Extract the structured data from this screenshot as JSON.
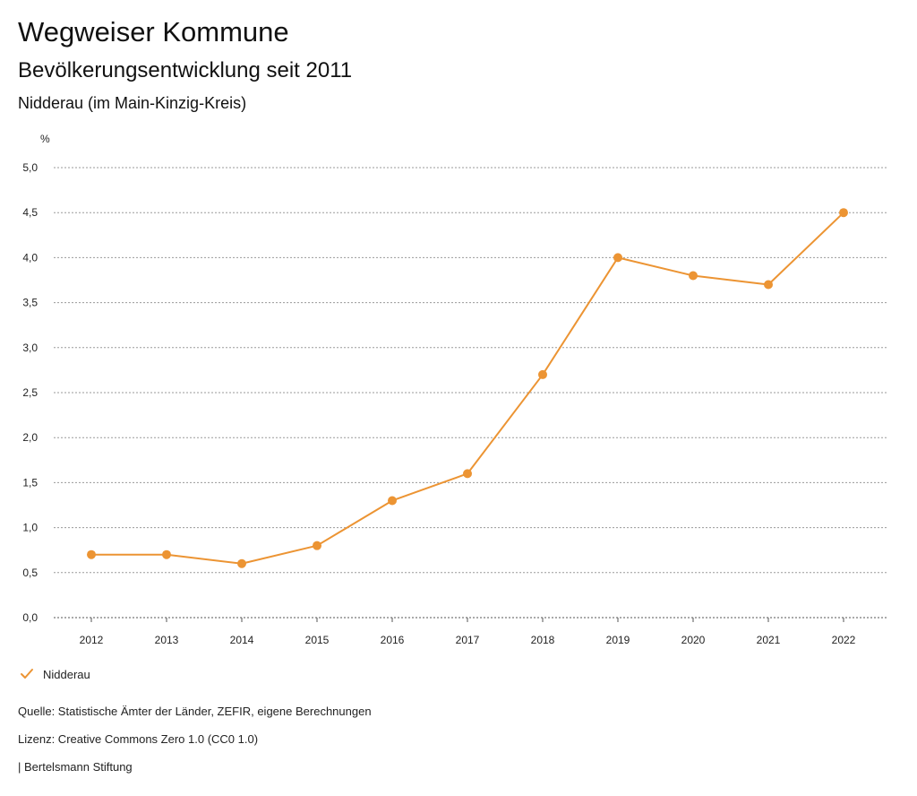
{
  "header": {
    "title": "Wegweiser Kommune",
    "subtitle": "Bevölkerungsentwicklung seit 2011",
    "region": "Nidderau (im Main-Kinzig-Kreis)"
  },
  "chart_data": {
    "type": "line",
    "title": "Bevölkerungsentwicklung seit 2011",
    "xlabel": "",
    "ylabel": "%",
    "x": [
      "2012",
      "2013",
      "2014",
      "2015",
      "2016",
      "2017",
      "2018",
      "2019",
      "2020",
      "2021",
      "2022"
    ],
    "series": [
      {
        "name": "Nidderau",
        "color": "#ec9433",
        "values": [
          0.7,
          0.7,
          0.6,
          0.8,
          1.3,
          1.6,
          2.7,
          4.0,
          3.8,
          3.7,
          4.5
        ]
      }
    ],
    "ylim": [
      0,
      5
    ],
    "yticks": [
      "0,0",
      "0,5",
      "1,0",
      "1,5",
      "2,0",
      "2,5",
      "3,0",
      "3,5",
      "4,0",
      "4,5",
      "5,0"
    ],
    "grid": true,
    "legend": "bottom-left"
  },
  "legend": {
    "label": "Nidderau"
  },
  "footer": {
    "source": "Quelle: Statistische Ämter der Länder, ZEFIR, eigene Berechnungen",
    "license": "Lizenz: Creative Commons Zero 1.0 (CC0 1.0)",
    "publisher": "| Bertelsmann Stiftung"
  },
  "colors": {
    "series": "#ec9433",
    "grid": "#9a9a9a",
    "axis": "#555555"
  }
}
